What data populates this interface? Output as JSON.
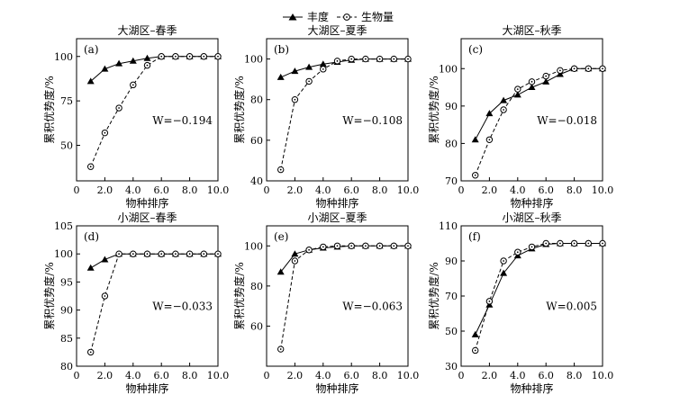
{
  "legend": {
    "series1": "丰度",
    "series2": "生物量"
  },
  "colors": {
    "line": "#000000",
    "marker_filled": "#000000",
    "marker_open_fill": "#ffffff",
    "marker_open_dot": "#000000"
  },
  "chart_data": [
    {
      "type": "line",
      "panel_label": "(a)",
      "title": "大湖区–春季",
      "xlabel": "物种排序",
      "ylabel": "累积优势度/%",
      "w_stat": "W=−0.194",
      "xlim": [
        0,
        10
      ],
      "ylim": [
        30,
        110
      ],
      "xticks": [
        "0",
        "2.0",
        "4.0",
        "6.0",
        "8.0",
        "10.0"
      ],
      "yticks": [
        "50",
        "75",
        "100"
      ],
      "x": [
        1,
        2,
        3,
        4,
        5,
        6,
        7,
        8,
        9,
        10
      ],
      "series": [
        {
          "name": "丰度",
          "values": [
            86,
            93,
            96,
            97.5,
            99,
            100,
            100,
            100,
            100,
            100
          ]
        },
        {
          "name": "生物量",
          "values": [
            38,
            57,
            71,
            84,
            95,
            100,
            100,
            100,
            100,
            100
          ]
        }
      ]
    },
    {
      "type": "line",
      "panel_label": "(b)",
      "title": "大湖区–夏季",
      "xlabel": "物种排序",
      "ylabel": "累积优势度/%",
      "w_stat": "W=−0.108",
      "xlim": [
        0,
        10
      ],
      "ylim": [
        40,
        110
      ],
      "xticks": [
        "0",
        "2.0",
        "4.0",
        "6.0",
        "8.0",
        "10.0"
      ],
      "yticks": [
        "40",
        "60",
        "80",
        "100"
      ],
      "x": [
        1,
        2,
        3,
        4,
        5,
        6,
        7,
        8,
        9,
        10
      ],
      "series": [
        {
          "name": "丰度",
          "values": [
            91,
            94,
            96,
            97.5,
            98.5,
            99.5,
            100,
            100,
            100,
            100
          ]
        },
        {
          "name": "生物量",
          "values": [
            45.5,
            80,
            89,
            95,
            99,
            100,
            100,
            100,
            100,
            100
          ]
        }
      ]
    },
    {
      "type": "line",
      "panel_label": "(c)",
      "title": "大湖区–秋季",
      "xlabel": "物种排序",
      "ylabel": "累积优势度/%",
      "w_stat": "W=−0.018",
      "xlim": [
        0,
        10
      ],
      "ylim": [
        70,
        108
      ],
      "xticks": [
        "0",
        "2.0",
        "4.0",
        "6.0",
        "8.0",
        "10.0"
      ],
      "yticks": [
        "70",
        "80",
        "90",
        "100"
      ],
      "x": [
        1,
        2,
        3,
        4,
        5,
        6,
        7,
        8,
        9,
        10
      ],
      "series": [
        {
          "name": "丰度",
          "values": [
            81,
            88,
            91.5,
            93,
            95,
            96.5,
            98.5,
            100,
            100,
            100
          ]
        },
        {
          "name": "生物量",
          "values": [
            71.5,
            81,
            89,
            94.5,
            96.5,
            98,
            99.5,
            100,
            100,
            100
          ]
        }
      ]
    },
    {
      "type": "line",
      "panel_label": "(d)",
      "title": "小湖区–春季",
      "xlabel": "物种排序",
      "ylabel": "累积优势度/%",
      "w_stat": "W=−0.033",
      "xlim": [
        0,
        10
      ],
      "ylim": [
        80,
        105
      ],
      "xticks": [
        "0",
        "2.0",
        "4.0",
        "6.0",
        "8.0",
        "10.0"
      ],
      "yticks": [
        "80",
        "85",
        "90",
        "95",
        "100",
        "105"
      ],
      "x": [
        1,
        2,
        3,
        4,
        5,
        6,
        7,
        8,
        9,
        10
      ],
      "series": [
        {
          "name": "丰度",
          "values": [
            97.5,
            99,
            100,
            100,
            100,
            100,
            100,
            100,
            100,
            100
          ]
        },
        {
          "name": "生物量",
          "values": [
            82.5,
            92.5,
            100,
            100,
            100,
            100,
            100,
            100,
            100,
            100
          ]
        }
      ]
    },
    {
      "type": "line",
      "panel_label": "(e)",
      "title": "小湖区–夏季",
      "xlabel": "物种排序",
      "ylabel": "累积优势度/%",
      "w_stat": "W=−0.063",
      "xlim": [
        0,
        10
      ],
      "ylim": [
        40,
        110
      ],
      "xticks": [
        "0",
        "2.0",
        "4.0",
        "6.0",
        "8.0",
        "10.0"
      ],
      "yticks": [
        "60",
        "80",
        "100"
      ],
      "x": [
        1,
        2,
        3,
        4,
        5,
        6,
        7,
        8,
        9,
        10
      ],
      "series": [
        {
          "name": "丰度",
          "values": [
            87,
            96,
            98,
            99,
            99.5,
            100,
            100,
            100,
            100,
            100
          ]
        },
        {
          "name": "生物量",
          "values": [
            48.5,
            92.5,
            98,
            99.5,
            100,
            100,
            100,
            100,
            100,
            100
          ]
        }
      ]
    },
    {
      "type": "line",
      "panel_label": "(f)",
      "title": "小湖区–秋季",
      "xlabel": "物种排序",
      "ylabel": "累积优势度/%",
      "w_stat": "W=0.005",
      "xlim": [
        0,
        10
      ],
      "ylim": [
        30,
        110
      ],
      "xticks": [
        "0",
        "2.0",
        "4.0",
        "6.0",
        "8.0",
        "10.0"
      ],
      "yticks": [
        "30",
        "50",
        "70",
        "90",
        "110"
      ],
      "x": [
        1,
        2,
        3,
        4,
        5,
        6,
        7,
        8,
        9,
        10
      ],
      "series": [
        {
          "name": "丰度",
          "values": [
            48,
            65,
            83,
            93,
            97,
            99.5,
            100,
            100,
            100,
            100
          ]
        },
        {
          "name": "生物量",
          "values": [
            39,
            67,
            90,
            95,
            98,
            100,
            100,
            100,
            100,
            100
          ]
        }
      ]
    }
  ]
}
